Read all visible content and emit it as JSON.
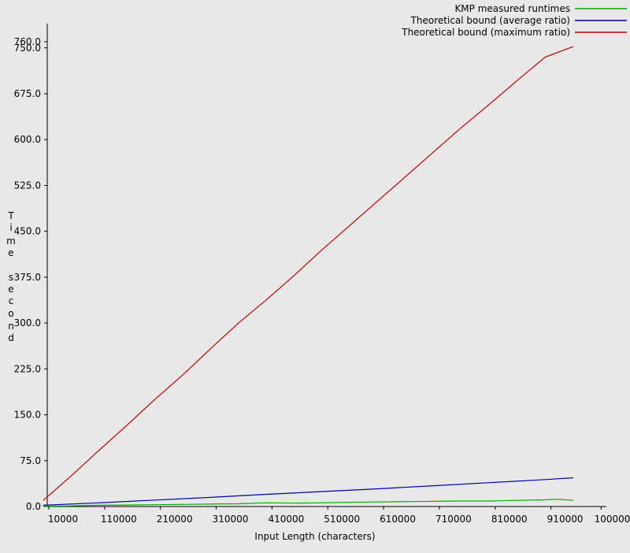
{
  "chart_data": {
    "type": "line",
    "title": "",
    "xlabel": "Input Length (characters)",
    "ylabel": "Time second",
    "ylabel_glyphs": [
      "T",
      "i",
      "m",
      "e",
      "s",
      "e",
      "c",
      "o",
      "n",
      "d"
    ],
    "xlim": [
      0,
      1000000
    ],
    "ylim": [
      0,
      760
    ],
    "x_ticks": [
      10000,
      110000,
      210000,
      310000,
      410000,
      510000,
      610000,
      710000,
      810000,
      910000,
      1000000
    ],
    "x_tick_labels": [
      "10000",
      "110000",
      "210000",
      "310000",
      "410000",
      "510000",
      "610000",
      "710000",
      "810000",
      "910000",
      "1000000"
    ],
    "y_ticks": [
      0,
      75,
      150,
      225,
      300,
      375,
      450,
      525,
      600,
      675,
      750,
      760
    ],
    "y_tick_labels": [
      "0.0",
      "75.0",
      "150.0",
      "225.0",
      "300.0",
      "375.0",
      "450.0",
      "525.0",
      "600.0",
      "675.0",
      "750.0",
      "760.0"
    ],
    "legend_position": "top-right",
    "grid": false,
    "series": [
      {
        "name": "KMP measured runtimes",
        "color": "#00aa00",
        "x": [
          0,
          50000,
          100000,
          150000,
          200000,
          250000,
          300000,
          350000,
          400000,
          450000,
          500000,
          550000,
          600000,
          650000,
          700000,
          750000,
          800000,
          850000,
          900000,
          920000,
          950000
        ],
        "y": [
          0.5,
          1,
          2,
          2.5,
          3,
          3.5,
          4,
          4.5,
          6,
          5.5,
          6,
          7,
          7.5,
          8,
          8.5,
          9,
          9,
          10,
          11,
          12,
          10
        ]
      },
      {
        "name": "Theoretical bound (average ratio)",
        "color": "#0000aa",
        "x": [
          0,
          100000,
          200000,
          300000,
          400000,
          500000,
          600000,
          700000,
          800000,
          900000,
          950000
        ],
        "y": [
          2,
          6,
          10.5,
          15,
          20,
          24.5,
          29,
          34,
          39,
          44,
          47
        ]
      },
      {
        "name": "Theoretical bound (maximum ratio)",
        "color": "#bb0000",
        "x": [
          0,
          50000,
          100000,
          150000,
          200000,
          250000,
          300000,
          350000,
          400000,
          450000,
          500000,
          550000,
          600000,
          650000,
          700000,
          750000,
          800000,
          850000,
          900000,
          950000
        ],
        "y": [
          10,
          50,
          92,
          133,
          175,
          215,
          258,
          300,
          338,
          378,
          420,
          460,
          500,
          540,
          580,
          620,
          658,
          697,
          735,
          752
        ]
      }
    ]
  }
}
